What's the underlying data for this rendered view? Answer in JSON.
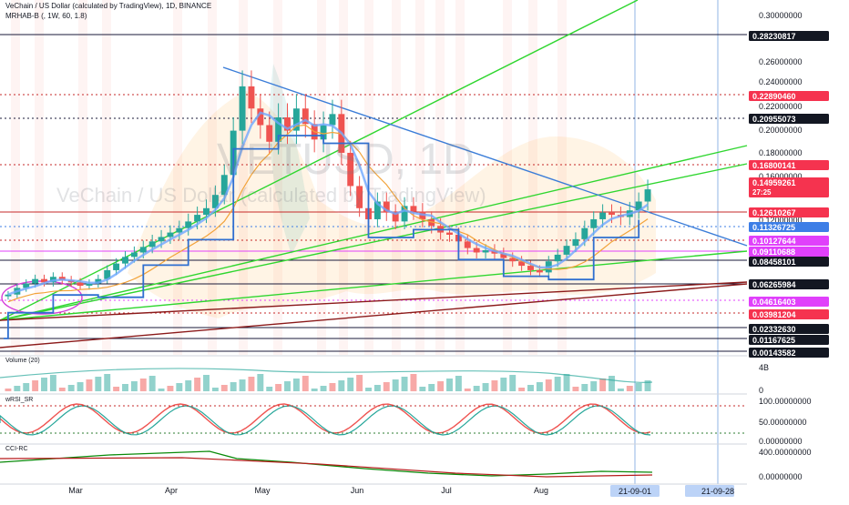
{
  "header": {
    "title": "VeChain / US Dollar (calculated by TradingView), 1D, BINANCE",
    "indicator": "MRHAB-B (, 1W, 60, 1.8)"
  },
  "watermark": {
    "symbol": "VETUSD, 1D",
    "name": "VeChain / US Dollar (calculated by TradingView)"
  },
  "panes": {
    "volume": "Volume (20)",
    "wrsi": "wRSI_SR",
    "cci": "CCI-RC"
  },
  "colors": {
    "up": "#26a69a",
    "down": "#ef5350",
    "trend_blue": "#3b7dd8",
    "trend_green": "#2fd62f",
    "trend_dark_red": "#8b1a1a",
    "price_label": "#f5334f",
    "pink_label": "#e040fb",
    "blue_label": "#3d7ee6"
  },
  "chart_data": {
    "type": "candlestick",
    "x_labels": [
      "Mar",
      "Apr",
      "May",
      "Jun",
      "Jul",
      "Aug"
    ],
    "time_labels": [
      "21-09-01",
      "21-09-28"
    ],
    "y_ticks": [
      "0.30000000",
      "0.26000000",
      "0.24000000",
      "0.22000000",
      "0.20000000",
      "0.18000000",
      "0.16000000",
      "0.12000000"
    ],
    "price_labels": [
      {
        "value": "0.28230817",
        "style": "dark"
      },
      {
        "value": "0.22890460",
        "style": "red"
      },
      {
        "value": "0.20955073",
        "style": "dark"
      },
      {
        "value": "0.16800141",
        "style": "red"
      },
      {
        "value": "0.14959261",
        "style": "red",
        "sub": "27:25"
      },
      {
        "value": "0.12610267",
        "style": "red"
      },
      {
        "value": "0.11326725",
        "style": "blue"
      },
      {
        "value": "0.10127644",
        "style": "pink"
      },
      {
        "value": "0.09110688",
        "style": "pink"
      },
      {
        "value": "0.08458101",
        "style": "dark"
      },
      {
        "value": "0.06265984",
        "style": "dark"
      },
      {
        "value": "0.04616403",
        "style": "pink"
      },
      {
        "value": "0.03981204",
        "style": "red"
      },
      {
        "value": "0.02332630",
        "style": "dark"
      },
      {
        "value": "0.01167625",
        "style": "dark"
      },
      {
        "value": "0.00143582",
        "style": "dark"
      }
    ],
    "close": [
      0.052,
      0.058,
      0.062,
      0.066,
      0.063,
      0.068,
      0.065,
      0.063,
      0.06,
      0.062,
      0.066,
      0.074,
      0.08,
      0.086,
      0.09,
      0.095,
      0.1,
      0.104,
      0.108,
      0.112,
      0.118,
      0.124,
      0.13,
      0.142,
      0.16,
      0.2,
      0.24,
      0.22,
      0.205,
      0.19,
      0.212,
      0.2,
      0.22,
      0.206,
      0.192,
      0.205,
      0.215,
      0.18,
      0.15,
      0.13,
      0.12,
      0.136,
      0.126,
      0.118,
      0.132,
      0.127,
      0.12,
      0.114,
      0.108,
      0.106,
      0.1,
      0.094,
      0.09,
      0.092,
      0.089,
      0.085,
      0.082,
      0.078,
      0.074,
      0.072,
      0.082,
      0.088,
      0.096,
      0.102,
      0.112,
      0.12,
      0.126,
      0.124,
      0.122,
      0.128,
      0.136,
      0.147
    ],
    "volume_pane_ticks": [
      "4B",
      "0"
    ],
    "wrsi_pane_ticks": [
      "100.00000000",
      "50.00000000",
      "0.00000000"
    ],
    "cci_pane_ticks": [
      "400.00000000",
      "0.00000000"
    ]
  }
}
